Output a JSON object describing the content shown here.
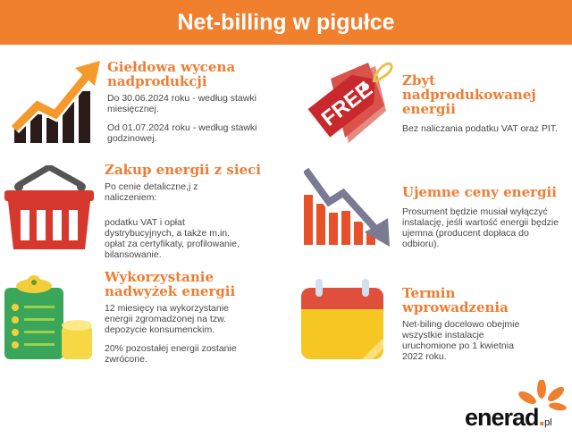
{
  "title": "Net-billing w pigułce",
  "sections": [
    {
      "heading": "Giełdowa wycena nadprodukcji",
      "paragraphs": [
        "Do 30.06.2024 roku - według stawki miesięcznej.",
        "Od 01.07.2024 roku - według stawki godzinowej."
      ],
      "icon": "rising-chart-icon"
    },
    {
      "heading": "Zbyt nadprodukowanej energii",
      "paragraphs": [
        "Bez naliczania podatku VAT oraz PIT."
      ],
      "icon": "free-tag-icon",
      "icon_label": "FREE"
    },
    {
      "heading": "Zakup energii z sieci",
      "paragraphs": [
        "Po cenie detaliczne,j z naliczeniem:",
        "podatku VAT i opłat dystrybucyjnych, a także m.in. opłat za certyfikaty, profilowanie, bilansowanie."
      ],
      "icon": "shopping-basket-icon"
    },
    {
      "heading": "Ujemne ceny energii",
      "paragraphs": [
        "Prosument będzie musiał wyłączyć instalację, jeśli wartość energii będzie ujemna (producent dopłaca do odbioru)."
      ],
      "icon": "falling-chart-icon"
    },
    {
      "heading": "Wykorzystanie nadwyżek energii",
      "paragraphs": [
        "12 miesięcy na wykorzystanie energii zgromadzonej na tzw. depozycie konsumenckim.",
        "20% pozostałej energii zostanie zwrócone."
      ],
      "icon": "clipboard-coins-icon"
    },
    {
      "heading": "Termin wprowadzenia",
      "paragraphs": [
        "Net-biling docelowo obejmie wszystkie instalacje uruchomione po 1 kwietnia 2022 roku."
      ],
      "icon": "calendar-icon"
    }
  ],
  "logo": {
    "name": "enerad",
    "dot": ".",
    "tld": "pl"
  },
  "colors": {
    "accent": "#f07f2e",
    "heading": "#ee7d33",
    "text": "#474747"
  }
}
